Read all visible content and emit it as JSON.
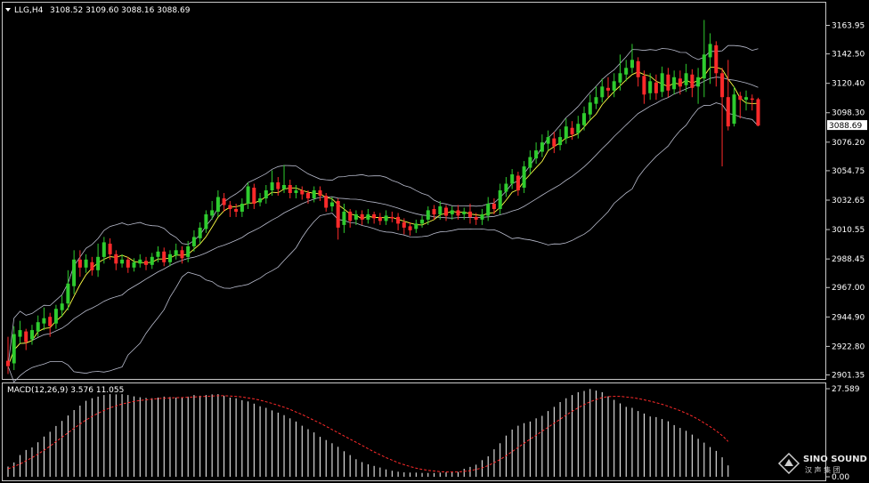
{
  "header": {
    "symbol": "LLG,H4",
    "ohlc": "3108.52 3109.60 3088.16 3088.69",
    "macd_label": "MACD(12,26,9) 3.576 11.055"
  },
  "colors": {
    "background": "#000000",
    "frame": "#c8c8c8",
    "bull": "#2ecc2e",
    "bear": "#ff2a2a",
    "bollinger": "#b9bccd",
    "ma_fast": "#ffff44",
    "macd_hist": "#ffffff",
    "macd_signal": "#ff2a2a"
  },
  "watermark": {
    "line1": "SINO SOUND",
    "line2": "汉 声 集 团"
  },
  "chart_data": [
    {
      "type": "candlestick",
      "title": "LLG,H4",
      "price_axis_ticks": [
        "3163.95",
        "3142.50",
        "3120.40",
        "3098.30",
        "3076.20",
        "3054.75",
        "3032.65",
        "3010.55",
        "2988.45",
        "2967.00",
        "2944.90",
        "2922.80",
        "2901.35"
      ],
      "ylim": [
        2899,
        3175
      ],
      "current_price": "3088.69",
      "grid": false,
      "candles": [
        [
          2912,
          2908,
          2930,
          2902
        ],
        [
          2910,
          2932,
          2938,
          2905
        ],
        [
          2930,
          2935,
          2942,
          2925
        ],
        [
          2934,
          2926,
          2936,
          2920
        ],
        [
          2928,
          2935,
          2939,
          2924
        ],
        [
          2934,
          2941,
          2946,
          2930
        ],
        [
          2940,
          2944,
          2952,
          2935
        ],
        [
          2945,
          2938,
          2948,
          2930
        ],
        [
          2940,
          2951,
          2954,
          2936
        ],
        [
          2950,
          2955,
          2961,
          2945
        ],
        [
          2955,
          2970,
          2980,
          2950
        ],
        [
          2968,
          2988,
          2995,
          2962
        ],
        [
          2988,
          2982,
          2995,
          2975
        ],
        [
          2982,
          2988,
          2992,
          2978
        ],
        [
          2986,
          2980,
          2990,
          2976
        ],
        [
          2980,
          2990,
          3000,
          2975
        ],
        [
          2990,
          3001,
          3005,
          2985
        ],
        [
          3000,
          2992,
          3004,
          2988
        ],
        [
          2992,
          2985,
          2995,
          2980
        ],
        [
          2985,
          2988,
          2992,
          2982
        ],
        [
          2988,
          2982,
          2990,
          2978
        ],
        [
          2982,
          2986,
          2989,
          2979
        ],
        [
          2985,
          2988,
          2992,
          2982
        ],
        [
          2987,
          2984,
          2990,
          2980
        ],
        [
          2984,
          2990,
          2993,
          2981
        ],
        [
          2990,
          2994,
          2998,
          2986
        ],
        [
          2994,
          2986,
          2997,
          2983
        ],
        [
          2986,
          2992,
          2995,
          2983
        ],
        [
          2991,
          2995,
          3000,
          2988
        ],
        [
          2995,
          2989,
          2998,
          2985
        ],
        [
          2990,
          2998,
          3002,
          2986
        ],
        [
          2998,
          3005,
          3010,
          2994
        ],
        [
          3004,
          3012,
          3016,
          3000
        ],
        [
          3011,
          3022,
          3025,
          3008
        ],
        [
          3021,
          3025,
          3032,
          3018
        ],
        [
          3024,
          3035,
          3040,
          3020
        ],
        [
          3034,
          3029,
          3038,
          3024
        ],
        [
          3029,
          3026,
          3032,
          3020
        ],
        [
          3026,
          3024,
          3030,
          3020
        ],
        [
          3024,
          3030,
          3034,
          3020
        ],
        [
          3030,
          3043,
          3046,
          3026
        ],
        [
          3042,
          3030,
          3045,
          3026
        ],
        [
          3031,
          3034,
          3038,
          3028
        ],
        [
          3034,
          3040,
          3044,
          3030
        ],
        [
          3040,
          3046,
          3055,
          3036
        ],
        [
          3046,
          3041,
          3050,
          3036
        ],
        [
          3041,
          3044,
          3059,
          3038
        ],
        [
          3044,
          3038,
          3048,
          3034
        ],
        [
          3038,
          3040,
          3044,
          3034
        ],
        [
          3040,
          3037,
          3043,
          3033
        ],
        [
          3038,
          3034,
          3040,
          3030
        ],
        [
          3034,
          3040,
          3043,
          3031
        ],
        [
          3040,
          3036,
          3043,
          3032
        ],
        [
          3036,
          3027,
          3038,
          3024
        ],
        [
          3028,
          3031,
          3035,
          3024
        ],
        [
          3032,
          3012,
          3034,
          3003
        ],
        [
          3014,
          3024,
          3030,
          3008
        ],
        [
          3024,
          3017,
          3026,
          3012
        ],
        [
          3018,
          3022,
          3025,
          3014
        ],
        [
          3022,
          3018,
          3025,
          3014
        ],
        [
          3018,
          3022,
          3026,
          3015
        ],
        [
          3022,
          3019,
          3024,
          3015
        ],
        [
          3020,
          3017,
          3023,
          3014
        ],
        [
          3017,
          3021,
          3025,
          3014
        ],
        [
          3020,
          3019,
          3024,
          3016
        ],
        [
          3020,
          3015,
          3023,
          3010
        ],
        [
          3016,
          3012,
          3019,
          3007
        ],
        [
          3013,
          3010,
          3016,
          3006
        ],
        [
          3011,
          3015,
          3018,
          3008
        ],
        [
          3015,
          3018,
          3021,
          3012
        ],
        [
          3018,
          3025,
          3028,
          3014
        ],
        [
          3026,
          3022,
          3029,
          3018
        ],
        [
          3022,
          3028,
          3032,
          3018
        ],
        [
          3027,
          3021,
          3029,
          3017
        ],
        [
          3022,
          3025,
          3028,
          3018
        ],
        [
          3025,
          3021,
          3029,
          3018
        ],
        [
          3022,
          3024,
          3027,
          3018
        ],
        [
          3024,
          3020,
          3030,
          3015
        ],
        [
          3020,
          3018,
          3023,
          3014
        ],
        [
          3018,
          3022,
          3026,
          3014
        ],
        [
          3021,
          3030,
          3035,
          3017
        ],
        [
          3030,
          3026,
          3034,
          3022
        ],
        [
          3026,
          3040,
          3045,
          3022
        ],
        [
          3039,
          3045,
          3050,
          3035
        ],
        [
          3045,
          3052,
          3056,
          3041
        ],
        [
          3051,
          3040,
          3054,
          3036
        ],
        [
          3042,
          3058,
          3062,
          3038
        ],
        [
          3057,
          3065,
          3070,
          3052
        ],
        [
          3064,
          3070,
          3076,
          3060
        ],
        [
          3069,
          3076,
          3082,
          3065
        ],
        [
          3075,
          3080,
          3085,
          3070
        ],
        [
          3079,
          3073,
          3084,
          3068
        ],
        [
          3074,
          3080,
          3086,
          3070
        ],
        [
          3079,
          3088,
          3094,
          3075
        ],
        [
          3087,
          3082,
          3092,
          3078
        ],
        [
          3083,
          3090,
          3096,
          3079
        ],
        [
          3089,
          3098,
          3103,
          3085
        ],
        [
          3097,
          3106,
          3112,
          3093
        ],
        [
          3105,
          3110,
          3118,
          3101
        ],
        [
          3110,
          3118,
          3124,
          3106
        ],
        [
          3117,
          3115,
          3125,
          3110
        ],
        [
          3115,
          3122,
          3128,
          3110
        ],
        [
          3121,
          3128,
          3142,
          3115
        ],
        [
          3127,
          3132,
          3138,
          3122
        ],
        [
          3132,
          3138,
          3150,
          3128
        ],
        [
          3137,
          3125,
          3140,
          3118
        ],
        [
          3126,
          3112,
          3130,
          3105
        ],
        [
          3113,
          3122,
          3128,
          3108
        ],
        [
          3121,
          3113,
          3127,
          3108
        ],
        [
          3114,
          3128,
          3133,
          3110
        ],
        [
          3127,
          3115,
          3132,
          3110
        ],
        [
          3116,
          3125,
          3130,
          3112
        ],
        [
          3124,
          3118,
          3130,
          3112
        ],
        [
          3119,
          3128,
          3135,
          3114
        ],
        [
          3127,
          3117,
          3131,
          3110
        ],
        [
          3118,
          3125,
          3132,
          3105
        ],
        [
          3124,
          3142,
          3168,
          3110
        ],
        [
          3140,
          3150,
          3158,
          3120
        ],
        [
          3149,
          3128,
          3152,
          3118
        ],
        [
          3128,
          3110,
          3132,
          3058
        ],
        [
          3110,
          3088,
          3138,
          3085
        ],
        [
          3090,
          3112,
          3118,
          3088
        ],
        [
          3111,
          3108,
          3114,
          3094
        ],
        [
          3108,
          3110,
          3115,
          3100
        ],
        [
          3109,
          3108,
          3112,
          3100
        ],
        [
          3108.52,
          3088.69,
          3109.6,
          3088.16
        ]
      ]
    },
    {
      "type": "bar",
      "title": "MACD(12,26,9) 3.576 11.055",
      "price_axis_ticks": [
        "27.589",
        "0.00"
      ],
      "ylim": [
        0,
        27.589
      ],
      "histogram": [
        3.2,
        4.5,
        6.8,
        8.4,
        9.2,
        10.8,
        12.6,
        14.1,
        15.9,
        17.5,
        19.2,
        20.9,
        22.3,
        23.8,
        24.6,
        25.1,
        25.6,
        25.9,
        25.8,
        25.9,
        25.6,
        25.2,
        24.9,
        24.7,
        24.6,
        24.8,
        25.1,
        25.0,
        24.8,
        24.9,
        25.1,
        25.6,
        25.4,
        25.6,
        25.8,
        25.9,
        25.4,
        24.8,
        24.6,
        24.0,
        23.6,
        22.9,
        22.1,
        21.6,
        20.8,
        20.1,
        19.3,
        18.3,
        17.3,
        16.0,
        14.9,
        13.9,
        12.5,
        11.5,
        10.5,
        9.4,
        8.0,
        6.8,
        5.5,
        4.6,
        3.9,
        3.4,
        2.9,
        2.3,
        1.9,
        1.6,
        1.4,
        1.3,
        1.3,
        1.2,
        1.2,
        1.2,
        1.3,
        1.4,
        1.4,
        1.5,
        2.5,
        3.1,
        3.8,
        5.2,
        6.4,
        8.6,
        10.5,
        12.9,
        14.8,
        16.0,
        16.8,
        17.3,
        18.3,
        19.1,
        20.6,
        21.9,
        23.4,
        24.6,
        25.6,
        26.5,
        26.9,
        27.5,
        27.0,
        26.5,
        25.2,
        24.1,
        23.0,
        21.9,
        21.6,
        20.6,
        19.8,
        18.9,
        18.7,
        18.1,
        17.4,
        16.2,
        15.3,
        14.4,
        13.2,
        11.9,
        10.7,
        9.3,
        8.1,
        6.1,
        3.576
      ],
      "signal": [
        2.5,
        3.2,
        4.0,
        5.0,
        6.0,
        7.1,
        8.3,
        9.6,
        11.0,
        12.4,
        13.8,
        15.2,
        16.5,
        17.8,
        18.9,
        19.9,
        20.8,
        21.6,
        22.2,
        22.8,
        23.2,
        23.6,
        23.9,
        24.1,
        24.3,
        24.5,
        24.6,
        24.7,
        24.8,
        24.8,
        24.9,
        25.0,
        25.1,
        25.2,
        25.3,
        25.4,
        25.4,
        25.3,
        25.2,
        25.0,
        24.7,
        24.4,
        24.0,
        23.5,
        23.0,
        22.4,
        21.8,
        21.1,
        20.3,
        19.5,
        18.6,
        17.7,
        16.8,
        15.8,
        14.8,
        13.8,
        12.8,
        11.8,
        10.8,
        9.8,
        8.8,
        7.8,
        6.9,
        6.0,
        5.2,
        4.4,
        3.8,
        3.2,
        2.7,
        2.3,
        2.0,
        1.8,
        1.6,
        1.5,
        1.5,
        1.5,
        1.7,
        1.9,
        2.3,
        2.8,
        3.5,
        4.4,
        5.4,
        6.6,
        7.9,
        9.2,
        10.5,
        11.8,
        13.0,
        14.3,
        15.5,
        16.8,
        18.0,
        19.3,
        20.5,
        21.6,
        22.6,
        23.5,
        24.2,
        24.8,
        25.1,
        25.2,
        25.2,
        25.0,
        24.8,
        24.5,
        24.1,
        23.7,
        23.2,
        22.7,
        22.1,
        21.4,
        20.7,
        19.9,
        19.0,
        18.0,
        16.9,
        15.7,
        14.4,
        12.9,
        11.055
      ]
    }
  ]
}
